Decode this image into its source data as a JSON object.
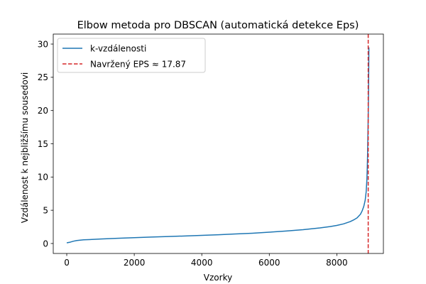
{
  "chart_data": {
    "type": "line",
    "title": "Elbow metoda pro DBSCAN (automatická detekce Eps)",
    "xlabel": "Vzorky",
    "ylabel": "Vzdálenost k nejbližšímu sousedovi",
    "xlim": [
      -400,
      9380
    ],
    "ylim": [
      -1.5,
      31.5
    ],
    "xticks": [
      0,
      2000,
      4000,
      6000,
      8000
    ],
    "yticks": [
      0,
      5,
      10,
      15,
      20,
      25,
      30
    ],
    "xtick_labels": [
      "0",
      "2000",
      "4000",
      "6000",
      "8000"
    ],
    "ytick_labels": [
      "0",
      "5",
      "10",
      "15",
      "20",
      "25",
      "30"
    ],
    "legend_position": "top-left",
    "series": [
      {
        "name": "k-vzdálenosti",
        "color": "#1f77b4",
        "x": [
          0,
          100,
          200,
          300,
          500,
          800,
          1000,
          1500,
          2000,
          2500,
          3000,
          3500,
          4000,
          4500,
          5000,
          5500,
          6000,
          6500,
          7000,
          7500,
          7800,
          8000,
          8200,
          8400,
          8500,
          8600,
          8700,
          8750,
          8800,
          8840,
          8870,
          8890,
          8900,
          8910,
          8920,
          8930,
          8940,
          8945,
          8950
        ],
        "y": [
          0.1,
          0.2,
          0.35,
          0.45,
          0.55,
          0.62,
          0.68,
          0.78,
          0.88,
          0.97,
          1.05,
          1.13,
          1.22,
          1.32,
          1.43,
          1.55,
          1.7,
          1.88,
          2.08,
          2.35,
          2.55,
          2.72,
          2.95,
          3.3,
          3.55,
          3.85,
          4.4,
          4.9,
          5.6,
          6.5,
          7.8,
          9.5,
          11,
          13,
          16,
          19,
          23,
          26,
          29.5
        ]
      },
      {
        "name": "Navržený EPS ≈ 17.87",
        "color": "#d62728",
        "style": "dashed",
        "vline_x": 8930
      }
    ]
  }
}
